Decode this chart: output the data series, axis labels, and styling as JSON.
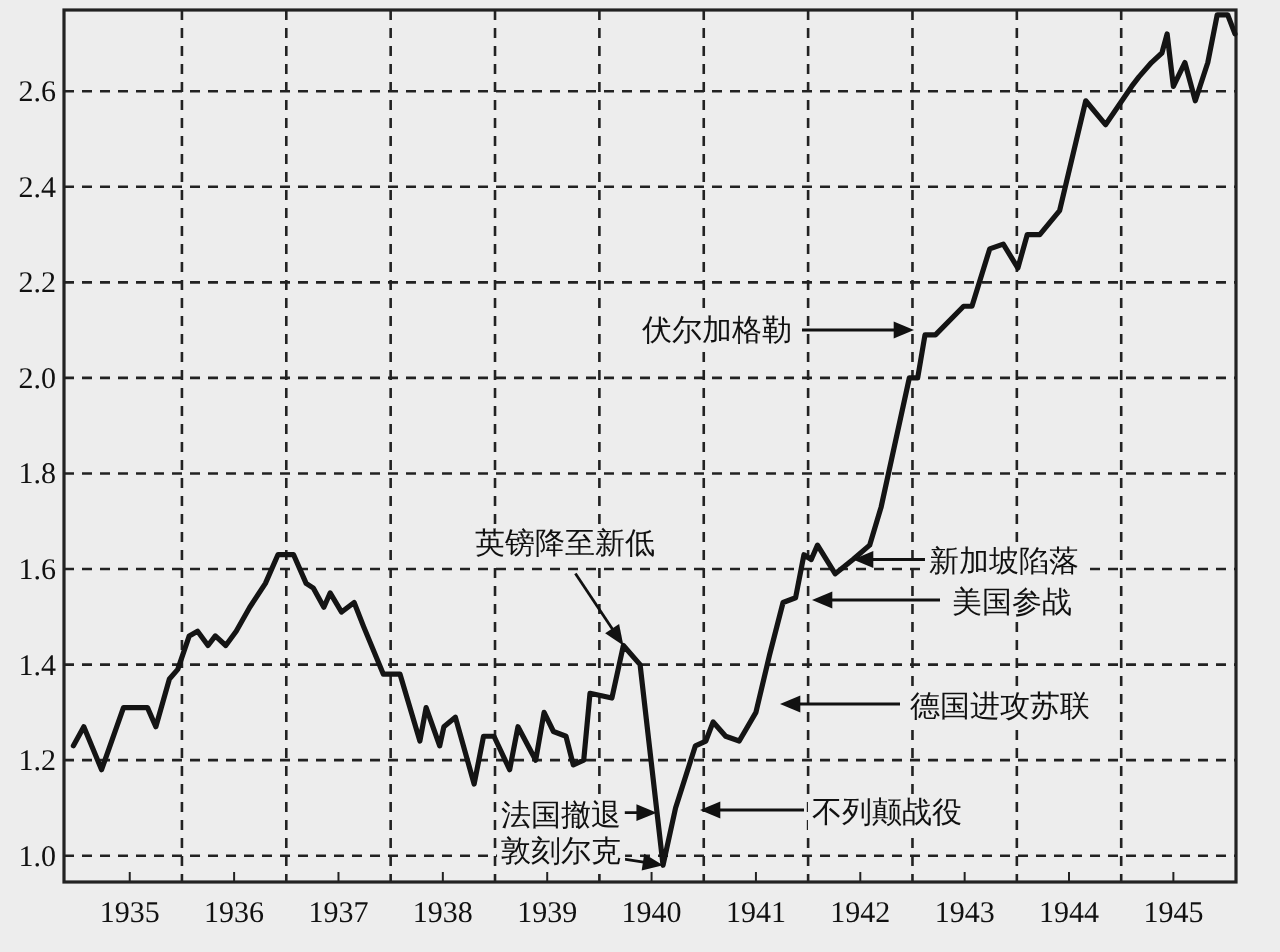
{
  "chart_data": {
    "type": "line",
    "color": "#141414",
    "x": [
      1934.46,
      1934.56,
      1934.73,
      1934.94,
      1935.06,
      1935.17,
      1935.25,
      1935.38,
      1935.46,
      1935.57,
      1935.65,
      1935.75,
      1935.82,
      1935.92,
      1936.02,
      1936.15,
      1936.3,
      1936.42,
      1936.57,
      1936.69,
      1936.76,
      1936.86,
      1936.92,
      1937.03,
      1937.15,
      1937.24,
      1937.43,
      1937.59,
      1937.78,
      1937.84,
      1937.97,
      1938.01,
      1938.12,
      1938.3,
      1938.39,
      1938.49,
      1938.64,
      1938.72,
      1938.89,
      1938.97,
      1939.06,
      1939.18,
      1939.25,
      1939.35,
      1939.41,
      1939.62,
      1939.73,
      1939.89,
      1940.11,
      1940.23,
      1940.42,
      1940.52,
      1940.59,
      1940.71,
      1940.84,
      1941.0,
      1941.13,
      1941.26,
      1941.38,
      1941.46,
      1941.53,
      1941.59,
      1941.76,
      1941.93,
      1942.09,
      1942.2,
      1942.3,
      1942.47,
      1942.55,
      1942.62,
      1942.72,
      1942.99,
      1943.07,
      1943.24,
      1943.37,
      1943.51,
      1943.6,
      1943.72,
      1943.91,
      1944.16,
      1944.35,
      1944.6,
      1944.67,
      1944.79,
      1944.89,
      1944.94,
      1945.0,
      1945.11,
      1945.21,
      1945.33,
      1945.42,
      1945.52,
      1945.59
    ],
    "values": [
      1.23,
      1.27,
      1.18,
      1.31,
      1.31,
      1.31,
      1.27,
      1.37,
      1.39,
      1.46,
      1.47,
      1.44,
      1.46,
      1.44,
      1.47,
      1.52,
      1.57,
      1.63,
      1.63,
      1.57,
      1.56,
      1.52,
      1.55,
      1.51,
      1.53,
      1.48,
      1.38,
      1.38,
      1.24,
      1.31,
      1.23,
      1.27,
      1.29,
      1.15,
      1.25,
      1.25,
      1.18,
      1.27,
      1.2,
      1.3,
      1.26,
      1.25,
      1.19,
      1.2,
      1.34,
      1.33,
      1.44,
      1.4,
      0.98,
      1.1,
      1.23,
      1.24,
      1.28,
      1.25,
      1.24,
      1.3,
      1.42,
      1.53,
      1.54,
      1.63,
      1.62,
      1.65,
      1.59,
      1.62,
      1.65,
      1.73,
      1.83,
      2.0,
      2.0,
      2.09,
      2.09,
      2.15,
      2.15,
      2.27,
      2.28,
      2.23,
      2.3,
      2.3,
      2.35,
      2.58,
      2.53,
      2.61,
      2.63,
      2.66,
      2.68,
      2.72,
      2.61,
      2.66,
      2.58,
      2.66,
      2.76,
      2.76,
      2.72
    ],
    "xlim": [
      1934.37,
      1945.6
    ],
    "ylim": [
      0.945,
      2.77
    ],
    "xticks": [
      1935,
      {
        "value": 1935.5,
        "label": null
      },
      1936,
      {
        "value": 1936.5,
        "label": null
      },
      1937,
      {
        "value": 1937.5,
        "label": null
      },
      1938,
      {
        "value": 1938.5,
        "label": null
      },
      1939,
      {
        "value": 1939.5,
        "label": null
      },
      1940,
      {
        "value": 1940.5,
        "label": null
      },
      1941,
      {
        "value": 1941.5,
        "label": null
      },
      1942,
      {
        "value": 1942.5,
        "label": null
      },
      1943,
      {
        "value": 1943.5,
        "label": null
      },
      1944,
      {
        "value": 1944.5,
        "label": null
      },
      1945
    ],
    "yticks": [
      {
        "value": 1.0,
        "label": "1.0"
      },
      1.2,
      1.4,
      1.6,
      1.8,
      {
        "value": 2.0,
        "label": "2.0"
      },
      2.2,
      2.4,
      2.6
    ],
    "grid": true,
    "marker": "none",
    "line_style": "solid",
    "annotations": [
      "伏尔加格勒",
      {
        "text": "英镑降至新低",
        "x": 1939.73,
        "y": 1.44
      },
      {
        "text": "新加坡陷落",
        "x": 1941.93,
        "y": 1.62
      },
      "美国参战",
      "德国进攻苏联",
      "不列颠战役",
      {
        "text": "法国撤退",
        "x": 1940.05,
        "y": 1.09
      },
      {
        "text": "敦刻尔克",
        "x": 1940.11,
        "y": 0.98
      }
    ]
  }
}
